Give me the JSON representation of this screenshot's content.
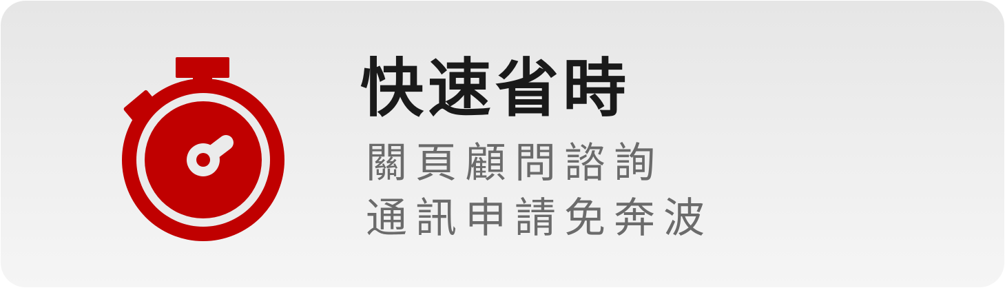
{
  "card": {
    "title": "快速省時",
    "subtitle_lines": [
      "關頁顧問諮詢",
      "通訊申請免奔波"
    ],
    "icon": "stopwatch-icon",
    "colors": {
      "accent": "#c00000",
      "title": "#1a1a1a",
      "subtitle": "#6b6b6b",
      "background": "#ebebeb"
    }
  }
}
